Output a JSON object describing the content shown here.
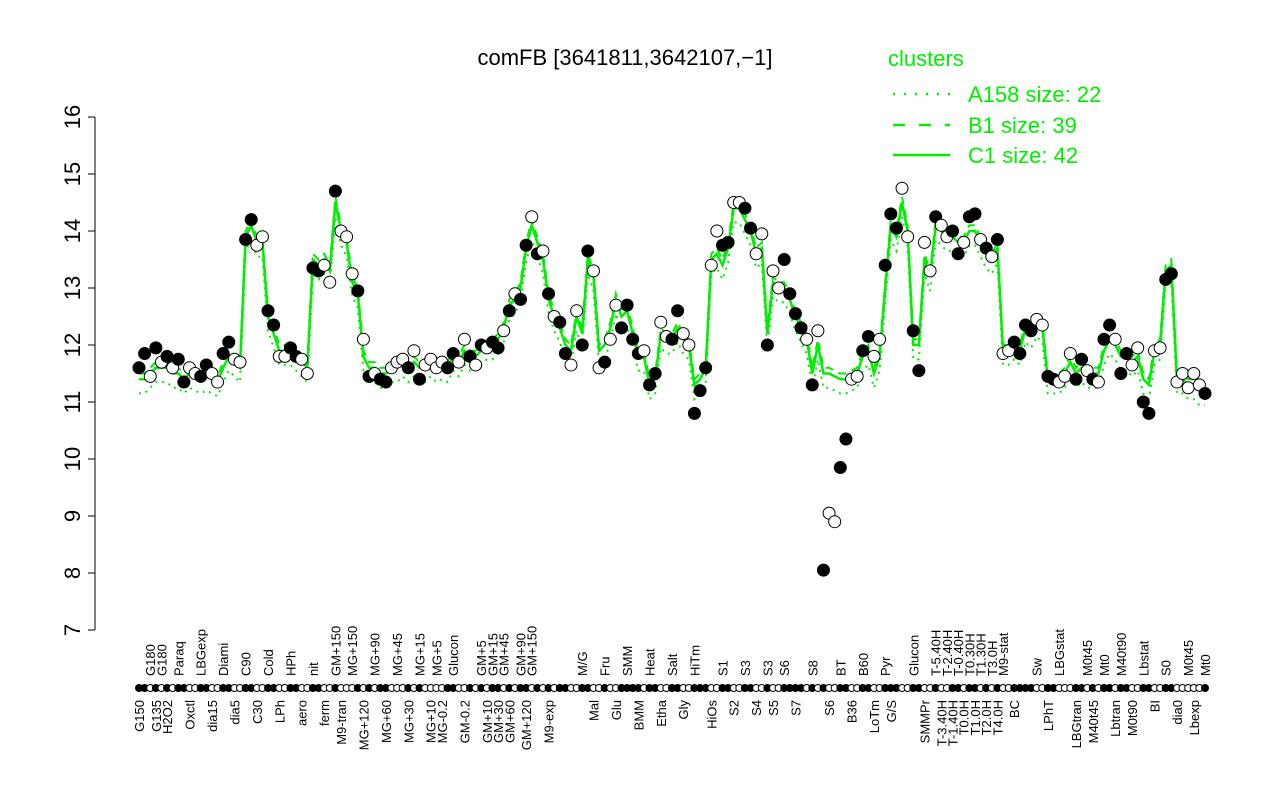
{
  "chart_data": {
    "type": "scatter",
    "title": "comFB [3641811,3642107,−1]",
    "xlabel": "",
    "ylabel": "",
    "ylim": [
      7,
      16
    ],
    "yticks": [
      7,
      8,
      9,
      10,
      11,
      12,
      13,
      14,
      15,
      16
    ],
    "grid": false,
    "legend": {
      "title": "clusters",
      "placement": "top-right",
      "entries": [
        {
          "label": "A158 size: 22",
          "style": "dotted"
        },
        {
          "label": "B1 size: 39",
          "style": "dashed"
        },
        {
          "label": "C1 size: 42",
          "style": "solid"
        }
      ]
    },
    "colors": {
      "line": "#00ee00",
      "legend": "#00ee00",
      "points": "#000000"
    },
    "point_fields": [
      "label",
      "value",
      "filled",
      "c1_value"
    ],
    "points": [
      [
        "G150",
        11.6,
        1,
        11.4
      ],
      [
        "G150",
        11.85,
        1,
        11.4
      ],
      [
        "G180",
        11.45,
        0,
        11.5
      ],
      [
        "G135",
        11.95,
        1,
        11.6
      ],
      [
        "G180",
        11.7,
        0,
        11.6
      ],
      [
        "H2O2",
        11.8,
        1,
        11.6
      ],
      [
        "H2O2",
        11.6,
        0,
        11.5
      ],
      [
        "Paraq",
        11.75,
        1,
        11.5
      ],
      [
        "Paraq",
        11.35,
        1,
        11.4
      ],
      [
        "Oxctl",
        11.6,
        0,
        11.5
      ],
      [
        "Oxctl",
        11.5,
        0,
        11.45
      ],
      [
        "LBGexp",
        11.45,
        1,
        11.4
      ],
      [
        "LBGexp",
        11.65,
        1,
        11.45
      ],
      [
        "dia15",
        11.5,
        0,
        11.4
      ],
      [
        "dia15",
        11.35,
        0,
        11.35
      ],
      [
        "Diami",
        11.85,
        1,
        11.6
      ],
      [
        "Diami",
        12.05,
        1,
        11.8
      ],
      [
        "dia5",
        11.75,
        0,
        11.7
      ],
      [
        "dia5",
        11.7,
        0,
        11.6
      ],
      [
        "C90",
        13.85,
        1,
        13.9
      ],
      [
        "C90",
        14.2,
        1,
        14.1
      ],
      [
        "C30",
        13.75,
        0,
        13.8
      ],
      [
        "C30",
        13.9,
        0,
        13.8
      ],
      [
        "Cold",
        12.6,
        1,
        12.5
      ],
      [
        "Cold",
        12.35,
        1,
        12.2
      ],
      [
        "LPh",
        11.8,
        0,
        11.9
      ],
      [
        "LPh",
        11.8,
        0,
        11.9
      ],
      [
        "HPh",
        11.95,
        1,
        11.9
      ],
      [
        "HPh",
        11.8,
        1,
        11.8
      ],
      [
        "aero",
        11.75,
        0,
        11.7
      ],
      [
        "aero",
        11.5,
        0,
        11.6
      ],
      [
        "nit",
        13.35,
        1,
        13.5
      ],
      [
        "nit",
        13.3,
        1,
        13.4
      ],
      [
        "ferm",
        13.4,
        0,
        13.5
      ],
      [
        "ferm",
        13.1,
        0,
        13.3
      ],
      [
        "GM+150",
        14.7,
        1,
        14.5
      ],
      [
        "M9-tran",
        14.0,
        0,
        14.0
      ],
      [
        "M9-tran",
        13.9,
        0,
        13.8
      ],
      [
        "MG+150",
        13.25,
        0,
        13.1
      ],
      [
        "MG+150",
        12.95,
        1,
        12.9
      ],
      [
        "MG+120",
        12.1,
        0,
        11.8
      ],
      [
        "MG+120",
        11.45,
        1,
        11.6
      ],
      [
        "MG+90",
        11.5,
        0,
        11.6
      ],
      [
        "MG+90",
        11.4,
        1,
        11.5
      ],
      [
        "MG+60",
        11.35,
        1,
        11.5
      ],
      [
        "MG+60",
        11.6,
        0,
        11.6
      ],
      [
        "MG+45",
        11.7,
        0,
        11.6
      ],
      [
        "MG+45",
        11.75,
        0,
        11.7
      ],
      [
        "MG+30",
        11.6,
        1,
        11.6
      ],
      [
        "MG+30",
        11.9,
        0,
        11.7
      ],
      [
        "MG+15",
        11.4,
        1,
        11.6
      ],
      [
        "MG+15",
        11.65,
        0,
        11.6
      ],
      [
        "MG+10",
        11.75,
        0,
        11.7
      ],
      [
        "MG+5",
        11.6,
        0,
        11.6
      ],
      [
        "MG-0.2",
        11.7,
        0,
        11.65
      ],
      [
        "MG-0.2",
        11.6,
        1,
        11.6
      ],
      [
        "Glucon",
        11.85,
        1,
        11.8
      ],
      [
        "Glucon",
        11.7,
        0,
        11.7
      ],
      [
        "GM-0.2",
        12.1,
        0,
        11.9
      ],
      [
        "GM-0.2",
        11.8,
        1,
        11.8
      ],
      [
        "GM-0.2",
        11.65,
        0,
        11.8
      ],
      [
        "GM+5",
        12.0,
        1,
        11.9
      ],
      [
        "GM+10",
        11.95,
        0,
        12.0
      ],
      [
        "GM+15",
        12.05,
        1,
        12.0
      ],
      [
        "GM+30",
        11.95,
        1,
        12.1
      ],
      [
        "GM+45",
        12.25,
        0,
        12.3
      ],
      [
        "GM+60",
        12.6,
        1,
        12.7
      ],
      [
        "GM+60",
        12.9,
        0,
        12.8
      ],
      [
        "GM+90",
        12.8,
        1,
        13.0
      ],
      [
        "GM+120",
        13.75,
        1,
        13.7
      ],
      [
        "GM+150",
        14.25,
        0,
        14.1
      ],
      [
        "GM+150",
        13.6,
        1,
        13.8
      ],
      [
        "GM+150",
        13.65,
        0,
        13.5
      ],
      [
        "M9-exp",
        12.9,
        1,
        12.8
      ],
      [
        "M9-exp",
        12.5,
        0,
        12.5
      ],
      [
        "M9-exp",
        12.4,
        1,
        12.3
      ],
      [
        "M9-exp",
        11.85,
        1,
        12.0
      ],
      [
        "M9-exp",
        11.65,
        0,
        11.9
      ],
      [
        "M9-exp",
        12.6,
        0,
        12.5
      ],
      [
        "M/G",
        12.0,
        1,
        12.2
      ],
      [
        "M/G",
        13.65,
        1,
        13.5
      ],
      [
        "Mal",
        13.3,
        0,
        13.2
      ],
      [
        "Mal",
        11.6,
        0,
        11.9
      ],
      [
        "Fru",
        11.7,
        1,
        12.0
      ],
      [
        "Fru",
        12.1,
        0,
        12.3
      ],
      [
        "Glu",
        12.7,
        0,
        12.8
      ],
      [
        "Glu",
        12.3,
        1,
        12.5
      ],
      [
        "SMM",
        12.7,
        1,
        12.6
      ],
      [
        "SMM",
        12.1,
        1,
        12.2
      ],
      [
        "BMM",
        11.85,
        1,
        11.8
      ],
      [
        "BMM",
        11.9,
        0,
        11.8
      ],
      [
        "Heat",
        11.3,
        1,
        11.3
      ],
      [
        "Heat",
        11.5,
        1,
        11.4
      ],
      [
        "Etha",
        12.4,
        0,
        12.2
      ],
      [
        "Etha",
        12.15,
        0,
        12.1
      ],
      [
        "Salt",
        12.1,
        1,
        12.1
      ],
      [
        "Salt",
        12.6,
        1,
        12.3
      ],
      [
        "Gly",
        12.2,
        0,
        12.1
      ],
      [
        "Gly",
        12.0,
        0,
        12.0
      ],
      [
        "HiTm",
        10.8,
        1,
        11.3
      ],
      [
        "HiTm",
        11.2,
        1,
        11.4
      ],
      [
        "HiTm",
        11.6,
        1,
        11.6
      ],
      [
        "HiOs",
        13.4,
        0,
        13.5
      ],
      [
        "HiOs",
        14.0,
        0,
        13.6
      ],
      [
        "S1",
        13.75,
        1,
        13.4
      ],
      [
        "S1",
        13.8,
        1,
        13.7
      ],
      [
        "S2",
        14.5,
        0,
        14.4
      ],
      [
        "S2",
        14.5,
        0,
        14.4
      ],
      [
        "S3",
        14.4,
        1,
        14.2
      ],
      [
        "S3",
        14.05,
        1,
        14.0
      ],
      [
        "S4",
        13.6,
        0,
        13.6
      ],
      [
        "S4",
        13.95,
        0,
        13.7
      ],
      [
        "S3",
        12.0,
        1,
        12.2
      ],
      [
        "S5",
        13.3,
        0,
        13.1
      ],
      [
        "S5",
        13.0,
        0,
        13.0
      ],
      [
        "S6",
        13.5,
        1,
        13.0
      ],
      [
        "S6",
        12.9,
        1,
        12.8
      ],
      [
        "S7",
        12.55,
        1,
        12.5
      ],
      [
        "S7",
        12.3,
        1,
        12.3
      ],
      [
        "S7",
        12.1,
        0,
        12.1
      ],
      [
        "S8",
        11.3,
        1,
        11.5
      ],
      [
        "S8",
        12.25,
        0,
        12.0
      ],
      [
        "S8",
        8.05,
        1,
        11.5
      ],
      [
        "S6",
        9.05,
        0,
        11.5
      ],
      [
        "S6",
        8.9,
        0,
        11.45
      ],
      [
        "BT",
        9.85,
        1,
        11.4
      ],
      [
        "BT",
        10.35,
        1,
        11.4
      ],
      [
        "B36",
        11.4,
        0,
        11.45
      ],
      [
        "B36",
        11.45,
        0,
        11.5
      ],
      [
        "B60",
        11.9,
        1,
        11.8
      ],
      [
        "B60",
        12.15,
        1,
        11.9
      ],
      [
        "LoTm",
        11.8,
        0,
        11.5
      ],
      [
        "LoTm",
        12.1,
        0,
        11.8
      ],
      [
        "Pyr",
        13.4,
        1,
        13.0
      ],
      [
        "G/S",
        14.3,
        1,
        14.1
      ],
      [
        "G/S",
        14.05,
        1,
        13.9
      ],
      [
        "G/S",
        14.75,
        0,
        14.5
      ],
      [
        "G/S",
        13.9,
        0,
        14.0
      ],
      [
        "Glucon",
        12.25,
        1,
        12.0
      ],
      [
        "Glucon",
        11.55,
        1,
        12.0
      ],
      [
        "SMMPr",
        13.8,
        0,
        13.5
      ],
      [
        "SMMPr",
        13.3,
        0,
        13.2
      ],
      [
        "T-5.40H",
        14.25,
        1,
        14.1
      ],
      [
        "T-3.40H",
        14.1,
        0,
        14.0
      ],
      [
        "T-2.40H",
        13.9,
        0,
        13.9
      ],
      [
        "T-1.40H",
        14.0,
        1,
        13.9
      ],
      [
        "T-0.40H",
        13.6,
        1,
        13.8
      ],
      [
        "T0.0H",
        13.8,
        0,
        13.8
      ],
      [
        "T0.30H",
        14.25,
        1,
        14.0
      ],
      [
        "T1.0H",
        14.3,
        1,
        14.0
      ],
      [
        "T1.30H",
        13.85,
        0,
        13.8
      ],
      [
        "T2.0H",
        13.7,
        1,
        13.6
      ],
      [
        "T3.0H",
        13.55,
        0,
        13.5
      ],
      [
        "T4.0H",
        13.85,
        1,
        13.7
      ],
      [
        "M9-stat",
        11.85,
        0,
        11.9
      ],
      [
        "M9-stat",
        11.9,
        0,
        11.9
      ],
      [
        "BC",
        12.05,
        1,
        12.0
      ],
      [
        "BC",
        11.85,
        1,
        11.9
      ],
      [
        "BC",
        12.35,
        1,
        12.3
      ],
      [
        "BC",
        12.25,
        1,
        12.2
      ],
      [
        "Sw",
        12.45,
        0,
        12.4
      ],
      [
        "Sw",
        12.35,
        0,
        12.3
      ],
      [
        "LPhT",
        11.45,
        1,
        11.4
      ],
      [
        "LPhT",
        11.4,
        1,
        11.4
      ],
      [
        "LBGstat",
        11.35,
        0,
        11.4
      ],
      [
        "LBGstat",
        11.45,
        0,
        11.5
      ],
      [
        "LBGstat",
        11.85,
        0,
        11.7
      ],
      [
        "LBGtran",
        11.4,
        1,
        11.5
      ],
      [
        "LBGtran",
        11.75,
        1,
        11.6
      ],
      [
        "M0t45",
        11.55,
        0,
        11.5
      ],
      [
        "M40t45",
        11.4,
        1,
        11.5
      ],
      [
        "M40t45",
        11.35,
        0,
        11.5
      ],
      [
        "Mt0",
        12.1,
        1,
        11.9
      ],
      [
        "Mt0",
        12.35,
        1,
        12.1
      ],
      [
        "Lbtran",
        12.1,
        0,
        12.0
      ],
      [
        "M40t90",
        11.5,
        1,
        11.8
      ],
      [
        "M40t90",
        11.85,
        1,
        11.8
      ],
      [
        "M0t90",
        11.65,
        0,
        11.7
      ],
      [
        "M0t90",
        11.95,
        0,
        11.8
      ],
      [
        "Lbstat",
        11.0,
        1,
        11.4
      ],
      [
        "Lbstat",
        10.8,
        1,
        11.3
      ],
      [
        "BI",
        11.9,
        0,
        11.9
      ],
      [
        "BI",
        11.95,
        0,
        12.0
      ],
      [
        "S0",
        13.15,
        1,
        13.3
      ],
      [
        "S0",
        13.25,
        1,
        13.4
      ],
      [
        "dia0",
        11.35,
        0,
        11.4
      ],
      [
        "dia0",
        11.5,
        0,
        11.4
      ],
      [
        "M0t45",
        11.25,
        0,
        11.3
      ],
      [
        "Lbexp",
        11.5,
        0,
        11.3
      ],
      [
        "Lbexp",
        11.3,
        0,
        11.2
      ],
      [
        "Mt0",
        11.15,
        1,
        11.2
      ]
    ]
  }
}
